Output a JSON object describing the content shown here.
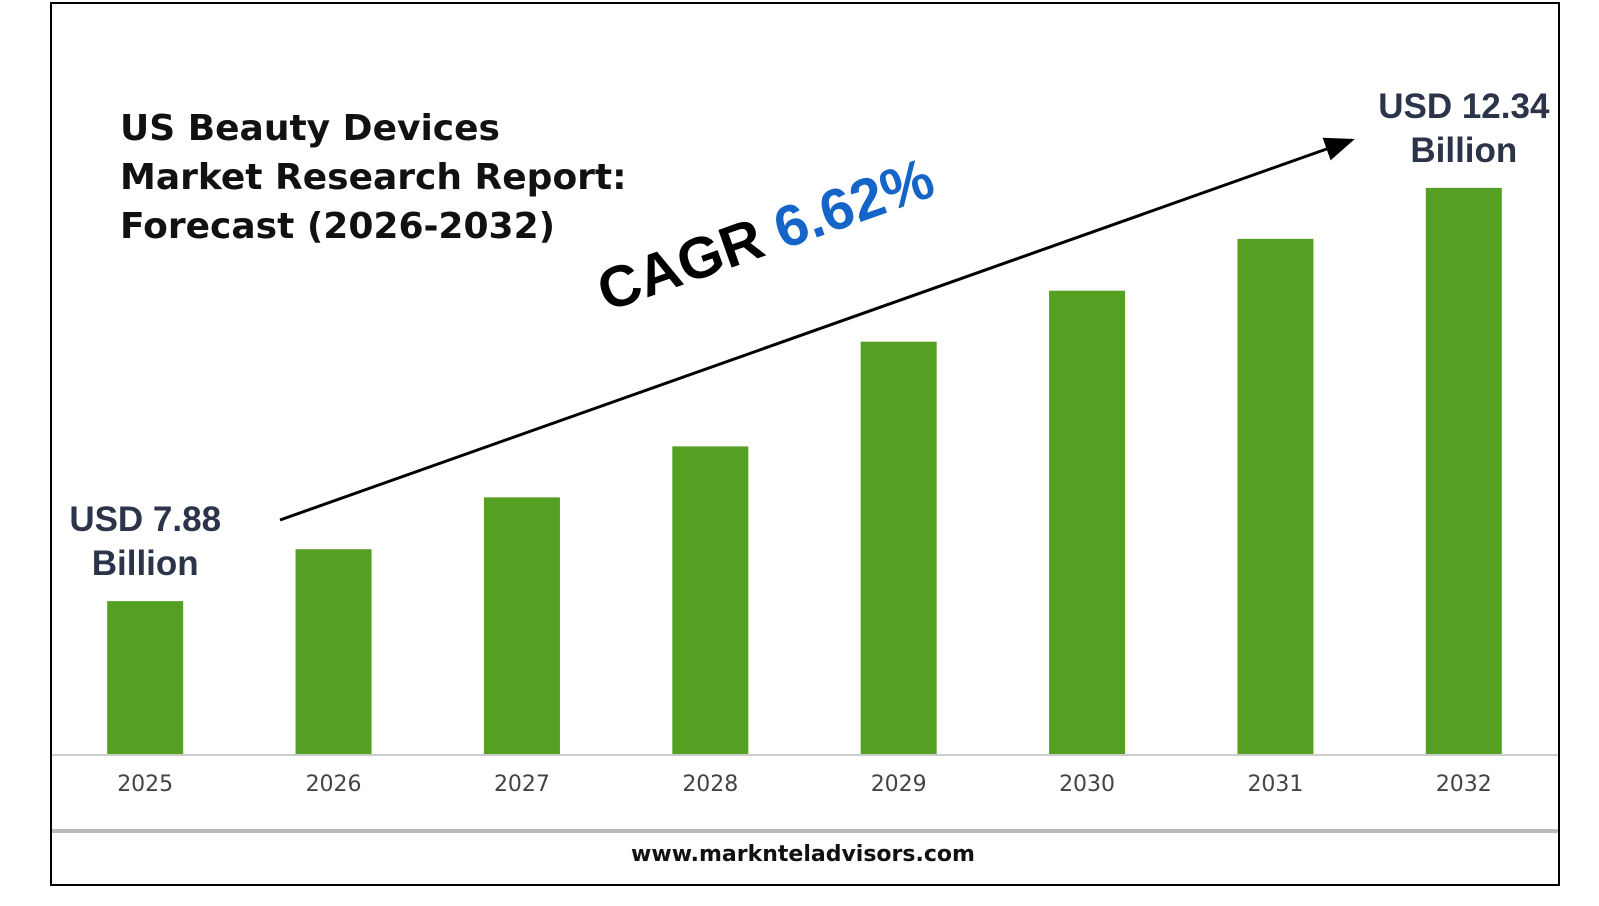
{
  "chart_data": {
    "type": "bar",
    "title": "US Beauty Devices Market Research Report: Forecast (2026-2032)",
    "categories": [
      "2025",
      "2026",
      "2027",
      "2028",
      "2029",
      "2030",
      "2031",
      "2032"
    ],
    "values": [
      7.88,
      8.44,
      9.0,
      9.55,
      10.68,
      11.23,
      11.79,
      12.34
    ],
    "value_labels": [
      "USD 7.88 Billion",
      null,
      null,
      null,
      null,
      null,
      null,
      "USD 12.34 Billion"
    ],
    "color": "#55a022",
    "ylim": [
      6.23,
      13.72
    ],
    "annotation": {
      "label": "CAGR",
      "value": "6.62%"
    },
    "source": "www.marknteladvisors.com"
  }
}
